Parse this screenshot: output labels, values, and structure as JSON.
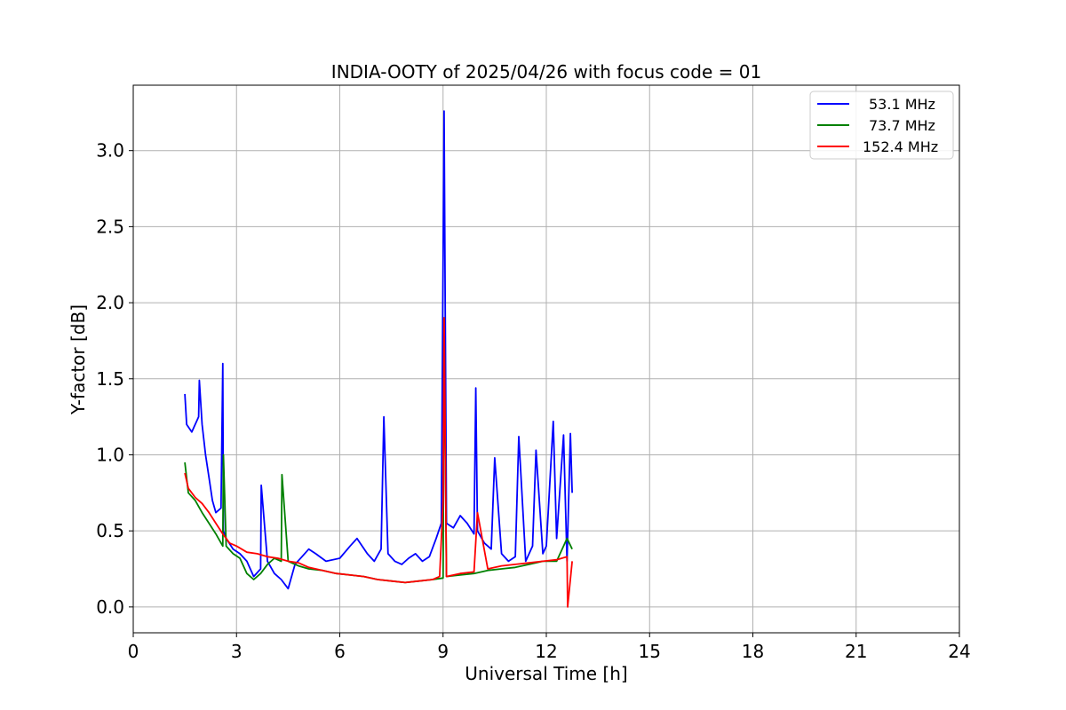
{
  "chart_data": {
    "type": "line",
    "title": "INDIA-OOTY of 2025/04/26 with focus code = 01",
    "xlabel": "Universal Time [h]",
    "ylabel": "Y-factor [dB]",
    "xlim": [
      0,
      24
    ],
    "ylim": [
      -0.17,
      3.43
    ],
    "xticks": [
      0,
      3,
      6,
      9,
      12,
      15,
      18,
      21,
      24
    ],
    "yticks": [
      0.0,
      0.5,
      1.0,
      1.5,
      2.0,
      2.5,
      3.0
    ],
    "ytick_labels": [
      "0.0",
      "0.5",
      "1.0",
      "1.5",
      "2.0",
      "2.5",
      "3.0"
    ],
    "grid": true,
    "legend_position": "top-right",
    "series": [
      {
        "name": "53.1 MHz",
        "color": "#0000ff",
        "x": [
          1.5,
          1.55,
          1.7,
          1.9,
          1.92,
          2.0,
          2.1,
          2.2,
          2.3,
          2.4,
          2.55,
          2.6,
          2.62,
          2.7,
          2.9,
          3.1,
          3.3,
          3.5,
          3.7,
          3.72,
          3.9,
          4.1,
          4.3,
          4.5,
          4.7,
          4.9,
          5.1,
          5.3,
          5.6,
          6.0,
          6.3,
          6.5,
          6.8,
          7.0,
          7.2,
          7.28,
          7.4,
          7.6,
          7.8,
          8.0,
          8.2,
          8.4,
          8.6,
          8.8,
          8.95,
          9.03,
          9.1,
          9.3,
          9.5,
          9.7,
          9.9,
          9.95,
          10.0,
          10.2,
          10.4,
          10.5,
          10.7,
          10.9,
          11.1,
          11.2,
          11.4,
          11.6,
          11.7,
          11.9,
          12.0,
          12.2,
          12.3,
          12.5,
          12.6,
          12.7,
          12.75
        ],
        "y": [
          1.4,
          1.2,
          1.15,
          1.25,
          1.49,
          1.2,
          1.0,
          0.85,
          0.7,
          0.62,
          0.65,
          1.6,
          0.5,
          0.45,
          0.38,
          0.35,
          0.3,
          0.2,
          0.25,
          0.8,
          0.3,
          0.22,
          0.18,
          0.12,
          0.28,
          0.33,
          0.38,
          0.35,
          0.3,
          0.32,
          0.4,
          0.45,
          0.35,
          0.3,
          0.38,
          1.25,
          0.35,
          0.3,
          0.28,
          0.32,
          0.35,
          0.3,
          0.33,
          0.45,
          0.55,
          3.26,
          0.55,
          0.52,
          0.6,
          0.55,
          0.48,
          1.44,
          0.5,
          0.42,
          0.38,
          0.98,
          0.35,
          0.3,
          0.33,
          1.12,
          0.3,
          0.4,
          1.03,
          0.35,
          0.4,
          1.22,
          0.45,
          1.13,
          0.3,
          1.14,
          0.75
        ]
      },
      {
        "name": "73.7 MHz",
        "color": "#008000",
        "x": [
          1.5,
          1.6,
          1.8,
          2.0,
          2.2,
          2.4,
          2.6,
          2.62,
          2.7,
          2.9,
          3.1,
          3.3,
          3.5,
          3.7,
          3.9,
          4.1,
          4.3,
          4.32,
          4.5,
          4.8,
          5.1,
          5.5,
          5.9,
          6.3,
          6.7,
          7.1,
          7.5,
          7.9,
          8.3,
          8.7,
          9.0,
          9.03,
          9.1,
          9.5,
          9.9,
          10.3,
          10.7,
          11.1,
          11.5,
          11.9,
          12.3,
          12.6,
          12.75
        ],
        "y": [
          0.95,
          0.75,
          0.7,
          0.62,
          0.55,
          0.48,
          0.4,
          1.0,
          0.4,
          0.35,
          0.32,
          0.22,
          0.18,
          0.22,
          0.28,
          0.32,
          0.3,
          0.87,
          0.3,
          0.27,
          0.25,
          0.24,
          0.22,
          0.21,
          0.2,
          0.18,
          0.17,
          0.16,
          0.17,
          0.18,
          0.19,
          1.9,
          0.2,
          0.21,
          0.22,
          0.24,
          0.25,
          0.26,
          0.28,
          0.3,
          0.3,
          0.45,
          0.38
        ]
      },
      {
        "name": "152.4 MHz",
        "color": "#ff0000",
        "x": [
          1.5,
          1.6,
          1.8,
          2.0,
          2.2,
          2.4,
          2.6,
          2.8,
          3.0,
          3.3,
          3.6,
          3.9,
          4.2,
          4.5,
          4.8,
          5.1,
          5.5,
          5.9,
          6.3,
          6.7,
          7.1,
          7.5,
          7.9,
          8.3,
          8.7,
          8.9,
          9.0,
          9.03,
          9.1,
          9.5,
          9.9,
          10.0,
          10.3,
          10.7,
          11.1,
          11.5,
          11.9,
          12.3,
          12.6,
          12.62,
          12.75
        ],
        "y": [
          0.88,
          0.78,
          0.72,
          0.68,
          0.62,
          0.55,
          0.48,
          0.42,
          0.4,
          0.36,
          0.35,
          0.33,
          0.32,
          0.3,
          0.29,
          0.26,
          0.24,
          0.22,
          0.21,
          0.2,
          0.18,
          0.17,
          0.16,
          0.17,
          0.18,
          0.2,
          0.7,
          1.9,
          0.2,
          0.22,
          0.23,
          0.62,
          0.25,
          0.27,
          0.28,
          0.29,
          0.3,
          0.31,
          0.33,
          0.0,
          0.3
        ]
      }
    ]
  }
}
